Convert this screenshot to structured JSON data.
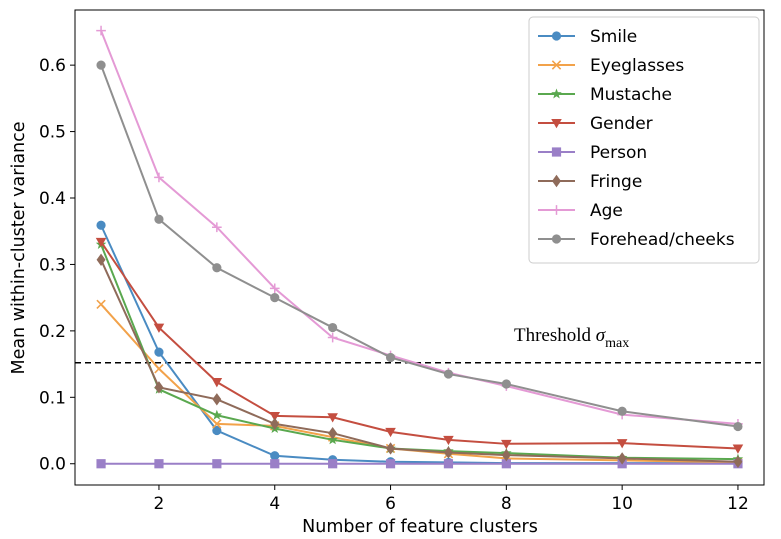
{
  "chart_data": {
    "type": "line",
    "title": "",
    "xlabel": "Number of feature clusters",
    "ylabel": "Mean within-cluster variance",
    "xlim": [
      0.55,
      12.45
    ],
    "ylim": [
      -0.032,
      0.683
    ],
    "xticks": [
      2,
      4,
      6,
      8,
      10,
      12
    ],
    "yticks": [
      0.0,
      0.1,
      0.2,
      0.3,
      0.4,
      0.5,
      0.6
    ],
    "ytick_labels": [
      "0.0",
      "0.1",
      "0.2",
      "0.3",
      "0.4",
      "0.5",
      "0.6"
    ],
    "legend_position": "top-right",
    "x": [
      1,
      2,
      3,
      4,
      5,
      6,
      7,
      8,
      10,
      12
    ],
    "series": [
      {
        "name": "Smile",
        "color": "#4a8bc2",
        "marker": "circle",
        "values": [
          0.359,
          0.168,
          0.05,
          0.012,
          0.006,
          0.003,
          0.002,
          0.001,
          0.001,
          0.001
        ]
      },
      {
        "name": "Eyeglasses",
        "color": "#f2a24a",
        "marker": "x",
        "values": [
          0.24,
          0.143,
          0.06,
          0.057,
          0.04,
          0.023,
          0.015,
          0.008,
          0.005,
          0.002
        ]
      },
      {
        "name": "Mustache",
        "color": "#5aa84f",
        "marker": "star",
        "values": [
          0.33,
          0.112,
          0.073,
          0.053,
          0.036,
          0.023,
          0.019,
          0.016,
          0.009,
          0.007
        ]
      },
      {
        "name": "Gender",
        "color": "#c44e40",
        "marker": "triangle-down",
        "values": [
          0.334,
          0.205,
          0.123,
          0.072,
          0.07,
          0.048,
          0.036,
          0.03,
          0.031,
          0.023
        ]
      },
      {
        "name": "Person",
        "color": "#9a7fc7",
        "marker": "square",
        "values": [
          0.0,
          0.0,
          0.0,
          0.0,
          0.0,
          0.0,
          0.0,
          0.0,
          0.0,
          0.0
        ]
      },
      {
        "name": "Fringe",
        "color": "#8f6b5a",
        "marker": "diamond",
        "values": [
          0.307,
          0.115,
          0.097,
          0.06,
          0.046,
          0.023,
          0.017,
          0.013,
          0.008,
          0.003
        ]
      },
      {
        "name": "Age",
        "color": "#e49ad5",
        "marker": "plus",
        "values": [
          0.652,
          0.431,
          0.356,
          0.264,
          0.19,
          0.163,
          0.137,
          0.117,
          0.074,
          0.06
        ]
      },
      {
        "name": "Forehead/cheeks",
        "color": "#8f8f8f",
        "marker": "circle",
        "values": [
          0.6,
          0.368,
          0.295,
          0.25,
          0.205,
          0.16,
          0.135,
          0.12,
          0.079,
          0.056
        ]
      }
    ],
    "threshold": {
      "value": 0.152,
      "label": "Threshold ",
      "symbol": "σ",
      "subscript": "max",
      "style": "dashed"
    }
  }
}
